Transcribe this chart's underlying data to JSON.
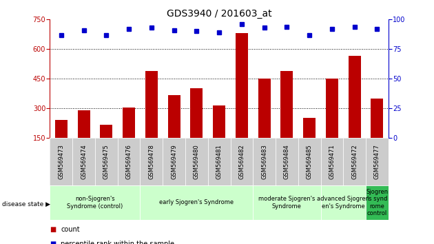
{
  "title": "GDS3940 / 201603_at",
  "samples": [
    "GSM569473",
    "GSM569474",
    "GSM569475",
    "GSM569476",
    "GSM569478",
    "GSM569479",
    "GSM569480",
    "GSM569481",
    "GSM569482",
    "GSM569483",
    "GSM569484",
    "GSM569485",
    "GSM569471",
    "GSM569472",
    "GSM569477"
  ],
  "counts": [
    240,
    290,
    218,
    305,
    490,
    368,
    400,
    315,
    680,
    450,
    488,
    252,
    450,
    565,
    348
  ],
  "percentiles": [
    87,
    91,
    87,
    92,
    93,
    91,
    90,
    89,
    96,
    93,
    94,
    87,
    92,
    94,
    92
  ],
  "ylim_left": [
    150,
    750
  ],
  "ylim_right": [
    0,
    100
  ],
  "yticks_left": [
    150,
    300,
    450,
    600,
    750
  ],
  "yticks_right": [
    0,
    25,
    50,
    75,
    100
  ],
  "bar_color": "#bb0000",
  "dot_color": "#0000cc",
  "bg_color": "#ffffff",
  "sample_bg": "#cccccc",
  "groups": [
    {
      "label": "non-Sjogren's\nSyndrome (control)",
      "start": 0,
      "end": 4,
      "color": "#ccffcc"
    },
    {
      "label": "early Sjogren's Syndrome",
      "start": 4,
      "end": 9,
      "color": "#ccffcc"
    },
    {
      "label": "moderate Sjogren's\nSyndrome",
      "start": 9,
      "end": 12,
      "color": "#ccffcc"
    },
    {
      "label": "advanced Sjogren\nen's Syndrome",
      "start": 12,
      "end": 14,
      "color": "#ccffcc"
    },
    {
      "label": "Sjogren\n's synd\nrome\ncontrol",
      "start": 14,
      "end": 15,
      "color": "#33bb55"
    }
  ],
  "legend_count_label": "count",
  "legend_pct_label": "percentile rank within the sample",
  "disease_state_label": "disease state",
  "title_fontsize": 10,
  "tick_fontsize": 7,
  "sample_fontsize": 6,
  "group_fontsize": 6,
  "legend_fontsize": 7
}
